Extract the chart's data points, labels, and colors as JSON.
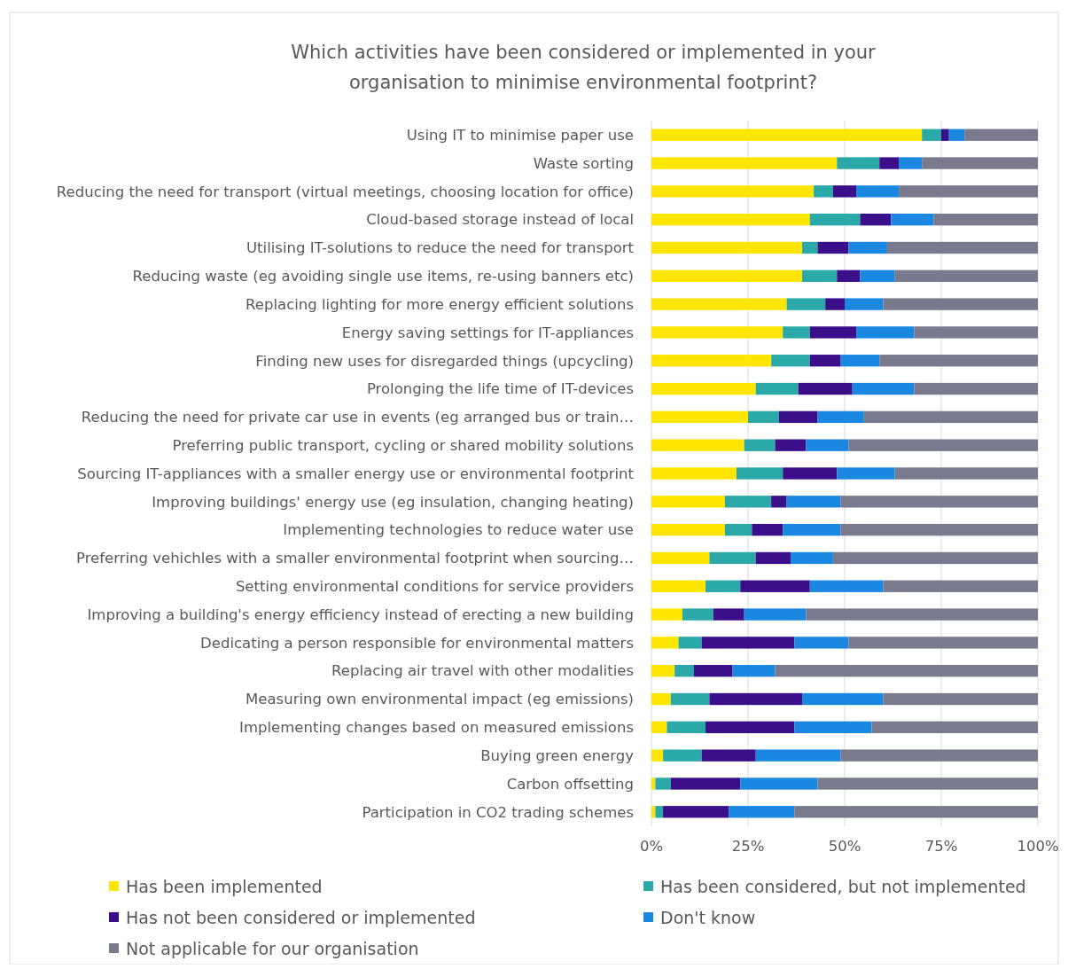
{
  "chart_data": {
    "type": "bar",
    "orientation": "horizontal",
    "stacked": true,
    "title": "Which activities have been considered or implemented in your organisation to minimise environmental footprint?",
    "categories": [
      "Using IT to minimise paper use",
      "Waste sorting",
      "Reducing the need for transport (virtual meetings, choosing location for office)",
      "Cloud-based storage instead of local",
      "Utilising IT-solutions to reduce the need for transport",
      "Reducing waste (eg avoiding single use items, re-using banners etc)",
      "Replacing lighting for more energy efficient solutions",
      "Energy saving settings for IT-appliances",
      "Finding new uses for disregarded things (upcycling)",
      "Prolonging the life time of IT-devices",
      "Reducing the need for private car use in events (eg arranged bus or train…",
      "Preferring public transport, cycling or shared mobility solutions",
      "Sourcing IT-appliances with a smaller energy use or environmental footprint",
      "Improving buildings' energy use (eg insulation, changing heating)",
      "Implementing technologies to reduce water use",
      "Preferring vehichles with a smaller environmental footprint when sourcing…",
      "Setting environmental conditions for service providers",
      "Improving a building's energy efficiency instead of erecting a new building",
      "Dedicating a person responsible for environmental matters",
      "Replacing air travel with other modalities",
      "Measuring own environmental impact (eg emissions)",
      "Implementing changes based on measured emissions",
      "Buying green energy",
      "Carbon offsetting",
      "Participation in CO2 trading schemes"
    ],
    "series": [
      {
        "name": "Has been implemented",
        "color": "#ffe600",
        "values": [
          70,
          48,
          42,
          41,
          39,
          39,
          35,
          34,
          31,
          27,
          25,
          24,
          22,
          19,
          19,
          15,
          14,
          8,
          7,
          6,
          5,
          4,
          3,
          1,
          1
        ]
      },
      {
        "name": "Has been considered, but not implemented",
        "color": "#2ba8a8",
        "values": [
          5,
          11,
          5,
          13,
          4,
          9,
          10,
          7,
          10,
          11,
          8,
          8,
          12,
          12,
          7,
          12,
          9,
          8,
          6,
          5,
          10,
          10,
          10,
          4,
          2
        ]
      },
      {
        "name": "Has not been considered or implemented",
        "color": "#3b0f8a",
        "values": [
          2,
          5,
          6,
          8,
          8,
          6,
          5,
          12,
          8,
          14,
          10,
          8,
          14,
          4,
          8,
          9,
          18,
          8,
          24,
          10,
          24,
          23,
          14,
          18,
          17
        ]
      },
      {
        "name": "Don't know",
        "color": "#1a88e0",
        "values": [
          4,
          6,
          11,
          11,
          10,
          9,
          10,
          15,
          10,
          16,
          12,
          11,
          15,
          14,
          15,
          11,
          19,
          16,
          14,
          11,
          21,
          20,
          22,
          20,
          17
        ]
      },
      {
        "name": "Not applicable for our organisation",
        "color": "#7a7a8e",
        "values": [
          19,
          30,
          36,
          27,
          39,
          37,
          40,
          32,
          41,
          32,
          45,
          49,
          37,
          51,
          51,
          53,
          40,
          60,
          49,
          68,
          40,
          43,
          51,
          57,
          63
        ]
      }
    ],
    "xlim": [
      0,
      100
    ],
    "xticks": [
      {
        "value": 0,
        "label": "0%"
      },
      {
        "value": 25,
        "label": "25%"
      },
      {
        "value": 50,
        "label": "50%"
      },
      {
        "value": 75,
        "label": "75%"
      },
      {
        "value": 100,
        "label": "100%"
      }
    ],
    "grid": "x",
    "legend": "bottom"
  }
}
